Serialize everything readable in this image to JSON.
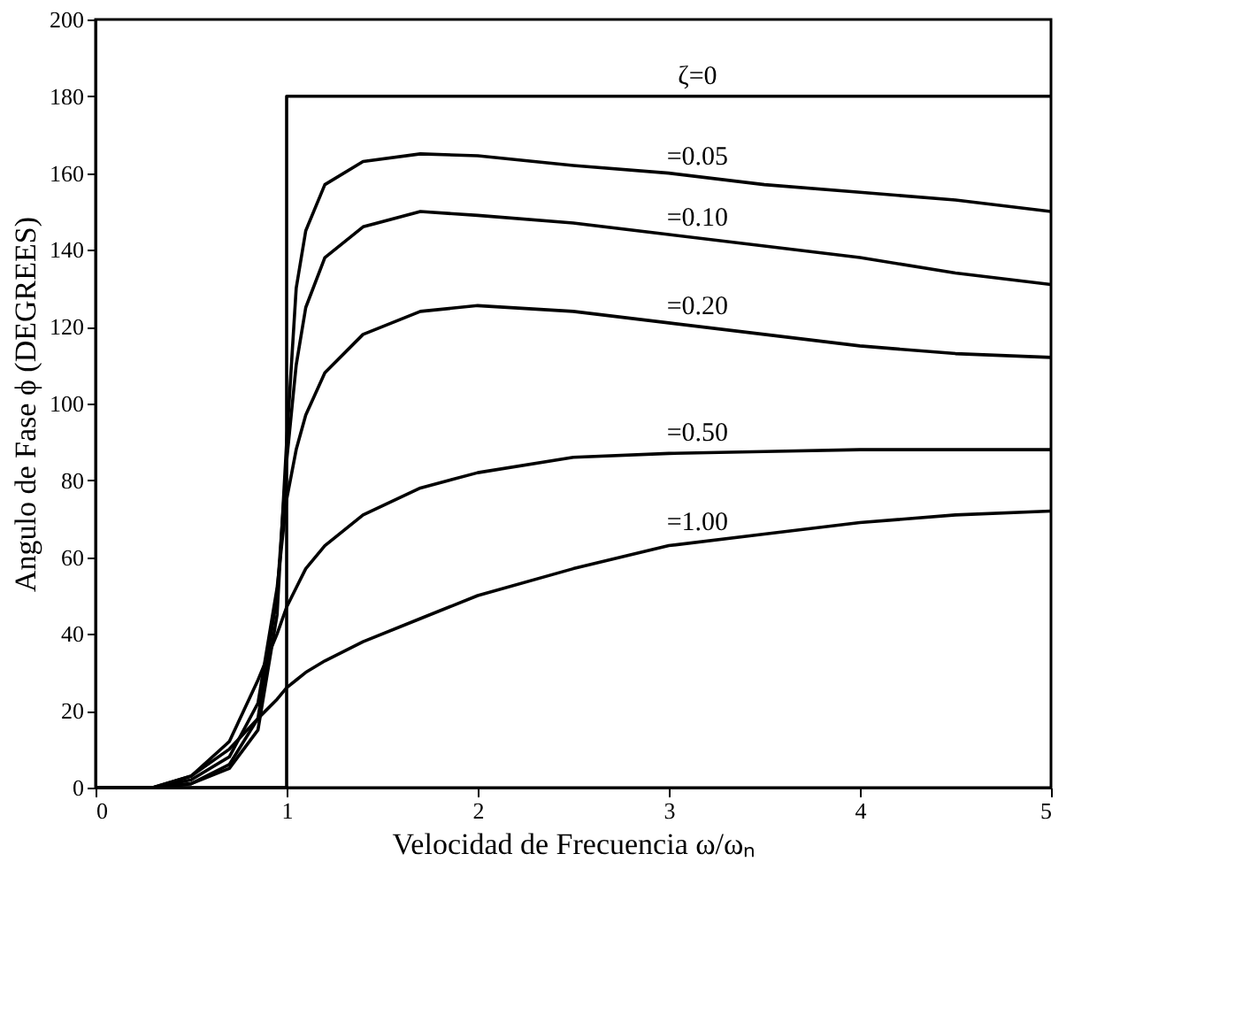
{
  "chart_data": {
    "type": "line",
    "xlabel": "Velocidad de Frecuencia  ω/ωₙ",
    "ylabel": "Angulo de Fase ϕ (DEGREES)",
    "xlim": [
      0,
      5
    ],
    "xticks": [
      0,
      1,
      2,
      3,
      4,
      5
    ],
    "ylim": [
      0,
      200
    ],
    "yticks": [
      0,
      20,
      40,
      60,
      80,
      100,
      120,
      140,
      160,
      180,
      200
    ],
    "grid": false,
    "marker": "none",
    "line_style": "solid",
    "series": [
      {
        "name": "ζ=0",
        "color": "#000000",
        "x": [
          0,
          1,
          1,
          5
        ],
        "values": [
          0,
          0,
          180,
          180
        ]
      },
      {
        "name": "=0.05",
        "color": "#000000",
        "x": [
          0,
          0.3,
          0.5,
          0.7,
          0.85,
          0.95,
          1.0,
          1.05,
          1.1,
          1.2,
          1.4,
          1.7,
          2,
          2.5,
          3,
          3.5,
          4,
          4.5,
          5
        ],
        "values": [
          0,
          0,
          1,
          5,
          15,
          45,
          90,
          130,
          145,
          157,
          163,
          165,
          164.5,
          162,
          160,
          157,
          155,
          153,
          150
        ]
      },
      {
        "name": "=0.10",
        "color": "#000000",
        "x": [
          0,
          0.3,
          0.5,
          0.7,
          0.85,
          0.95,
          1.0,
          1.05,
          1.1,
          1.2,
          1.4,
          1.7,
          2,
          2.5,
          3,
          3.5,
          4,
          4.5,
          5
        ],
        "values": [
          0,
          0,
          1,
          6,
          18,
          50,
          85,
          110,
          125,
          138,
          146,
          150,
          149,
          147,
          144,
          141,
          138,
          134,
          131
        ]
      },
      {
        "name": "=0.20",
        "color": "#000000",
        "x": [
          0,
          0.3,
          0.5,
          0.7,
          0.85,
          0.95,
          1.0,
          1.05,
          1.1,
          1.2,
          1.4,
          1.7,
          2,
          2.5,
          3,
          3.5,
          4,
          4.5,
          5
        ],
        "values": [
          0,
          0,
          2,
          8,
          22,
          52,
          75,
          88,
          97,
          108,
          118,
          124,
          125.5,
          124,
          121,
          118,
          115,
          113,
          112
        ]
      },
      {
        "name": "=0.50",
        "color": "#000000",
        "x": [
          0,
          0.3,
          0.5,
          0.7,
          0.85,
          0.95,
          1.0,
          1.05,
          1.1,
          1.2,
          1.4,
          1.7,
          2,
          2.5,
          3,
          3.5,
          4,
          4.5,
          5
        ],
        "values": [
          0,
          0,
          3,
          12,
          28,
          40,
          47,
          52,
          57,
          63,
          71,
          78,
          82,
          86,
          87,
          87.5,
          88,
          88,
          88
        ]
      },
      {
        "name": "=1.00",
        "color": "#000000",
        "x": [
          0,
          0.3,
          0.5,
          0.7,
          0.85,
          0.95,
          1.0,
          1.05,
          1.1,
          1.2,
          1.4,
          1.7,
          2,
          2.5,
          3,
          3.5,
          4,
          4.5,
          5
        ],
        "values": [
          0,
          0,
          3,
          10,
          18,
          23,
          26,
          28,
          30,
          33,
          38,
          44,
          50,
          57,
          63,
          66,
          69,
          71,
          72
        ]
      }
    ]
  }
}
